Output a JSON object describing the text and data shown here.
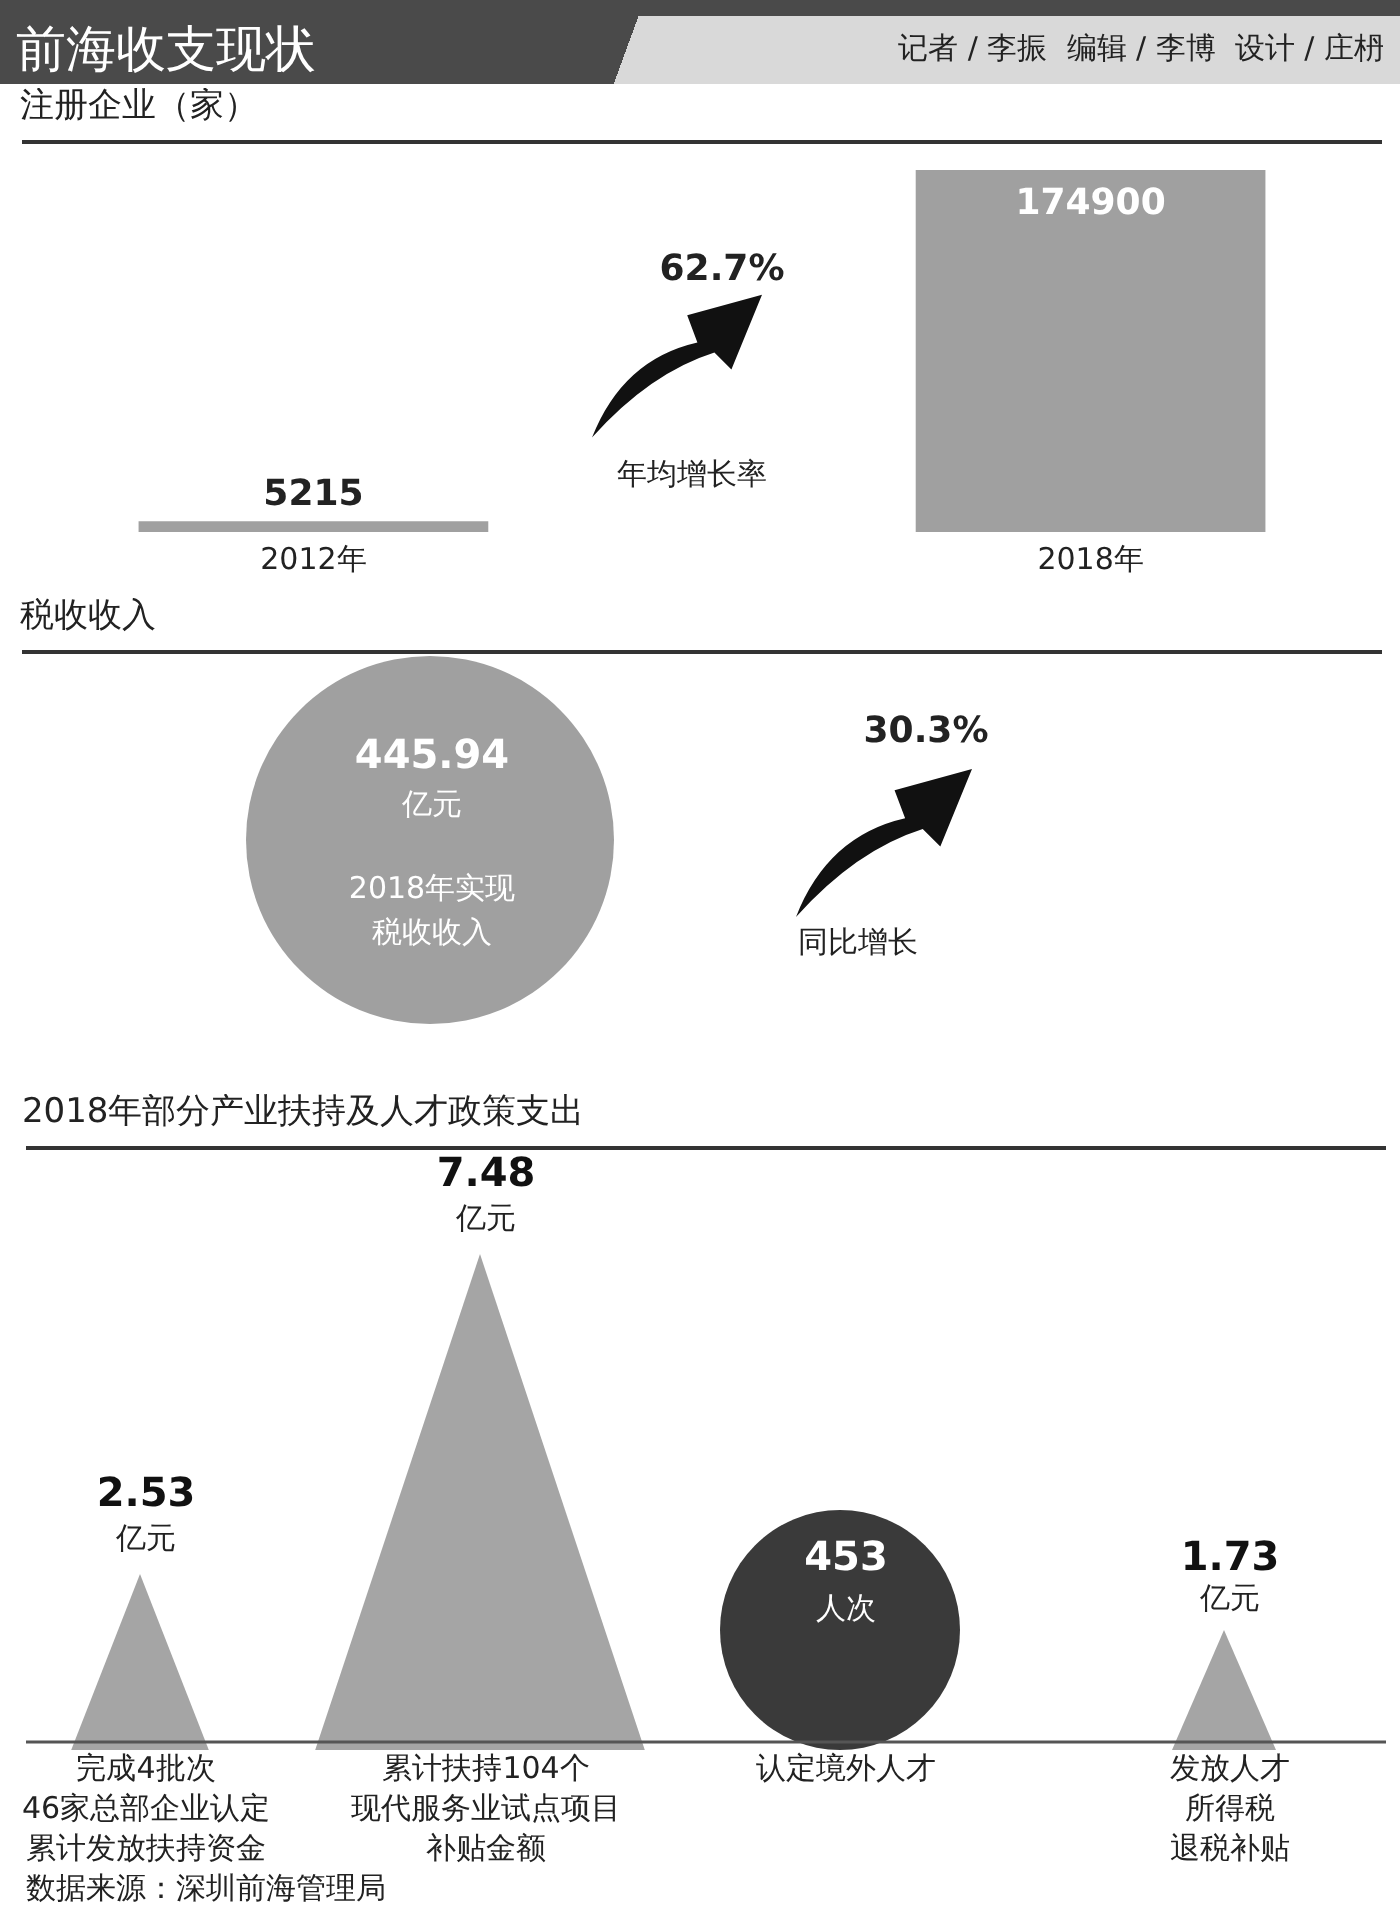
{
  "chart_data": [
    {
      "type": "other",
      "title": "前海收支现状",
      "annotations": [
        "记者 / 李振  编辑 / 李博  设计 / 庄枬"
      ]
    },
    {
      "type": "bar",
      "title": "注册企业（家）",
      "categories": [
        "2012年",
        "2018年"
      ],
      "values": [
        5215,
        174900
      ],
      "color": "#a0a0a0",
      "data_labels": true,
      "annotations": [
        "62.7%",
        "年均增长率"
      ]
    },
    {
      "type": "other",
      "title": "税收收入",
      "annotations": [
        "445.94",
        "亿元",
        "2018年实现税收收入",
        "30.3%",
        "同比增长"
      ]
    },
    {
      "type": "other",
      "title": "2018年部分产业扶持及人才政策支出",
      "categories": [
        "完成4批次46家总部企业认定累计发放扶持资金",
        "累计扶持104个现代服务业试点项目补贴金额",
        "认定境外人才",
        "发放人才所得税退税补贴"
      ],
      "values": [
        2.53,
        7.48,
        453,
        1.73
      ],
      "colors": [
        "#a5a5a5",
        "#a5a5a5",
        "#3a3a3a",
        "#a5a5a5"
      ],
      "data_labels": true,
      "annotations": [
        {
          "text": "亿元",
          "x": "完成4批次46家总部企业认定累计发放扶持资金"
        },
        {
          "text": "亿元",
          "x": "累计扶持104个现代服务业试点项目补贴金额"
        },
        {
          "text": "人次",
          "x": "认定境外人才"
        },
        {
          "text": "亿元",
          "x": "发放人才所得税退税补贴"
        },
        "数据来源：深圳前海管理局"
      ]
    }
  ]
}
